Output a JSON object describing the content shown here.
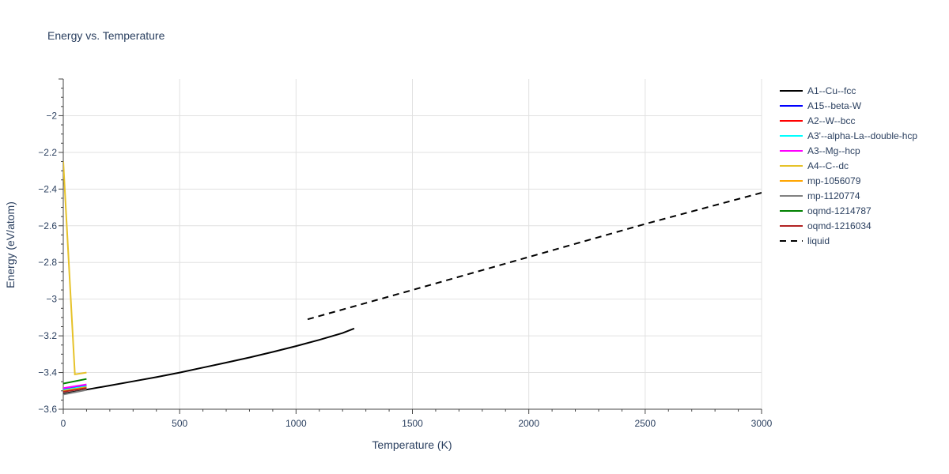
{
  "chart_data": {
    "type": "line",
    "title": "Energy vs. Temperature",
    "xlabel": "Temperature (K)",
    "ylabel": "Energy (eV/atom)",
    "xlim": [
      0,
      3000
    ],
    "ylim": [
      -3.6,
      -1.8
    ],
    "xticks": [
      0,
      500,
      1000,
      1500,
      2000,
      2500,
      3000
    ],
    "yticks": [
      -3.6,
      -3.4,
      -3.2,
      -3.0,
      -2.8,
      -2.6,
      -2.4,
      -2.2,
      -2.0
    ],
    "ytick_labels": [
      "−3.6",
      "−3.4",
      "−3.2",
      "−3",
      "−2.8",
      "−2.6",
      "−2.4",
      "−2.2",
      "−2"
    ],
    "grid": true,
    "legend_position": "right",
    "series": [
      {
        "name": "A1--Cu--fcc",
        "color": "#000000",
        "dash": "solid",
        "x": [
          0,
          100,
          200,
          300,
          400,
          500,
          600,
          700,
          800,
          900,
          1000,
          1100,
          1200,
          1250
        ],
        "y": [
          -3.515,
          -3.493,
          -3.471,
          -3.448,
          -3.425,
          -3.4,
          -3.373,
          -3.346,
          -3.318,
          -3.288,
          -3.256,
          -3.222,
          -3.185,
          -3.16
        ]
      },
      {
        "name": "A15--beta-W",
        "color": "#0000ff",
        "dash": "solid",
        "x": [
          0,
          100
        ],
        "y": [
          -3.49,
          -3.47
        ]
      },
      {
        "name": "A2--W--bcc",
        "color": "#ff0000",
        "dash": "solid",
        "x": [
          0,
          100
        ],
        "y": [
          -3.5,
          -3.48
        ]
      },
      {
        "name": "A3'--alpha-La--double-hcp",
        "color": "#00ffff",
        "dash": "solid",
        "x": [
          0,
          100
        ],
        "y": [
          -3.495,
          -3.475
        ]
      },
      {
        "name": "A3--Mg--hcp",
        "color": "#ff00ff",
        "dash": "solid",
        "x": [
          0,
          100
        ],
        "y": [
          -3.485,
          -3.465
        ]
      },
      {
        "name": "A4--C--dc",
        "color": "#e6c229",
        "dash": "solid",
        "x": [
          0,
          50,
          100
        ],
        "y": [
          -2.25,
          -3.41,
          -3.4
        ]
      },
      {
        "name": "mp-1056079",
        "color": "#ffa500",
        "dash": "solid",
        "x": [
          0,
          100
        ],
        "y": [
          -3.5,
          -3.48
        ]
      },
      {
        "name": "mp-1120774",
        "color": "#808080",
        "dash": "solid",
        "x": [
          0,
          100
        ],
        "y": [
          -3.52,
          -3.495
        ]
      },
      {
        "name": "oqmd-1214787",
        "color": "#008000",
        "dash": "solid",
        "x": [
          0,
          100
        ],
        "y": [
          -3.46,
          -3.435
        ]
      },
      {
        "name": "oqmd-1216034",
        "color": "#b22222",
        "dash": "solid",
        "x": [
          0,
          100
        ],
        "y": [
          -3.505,
          -3.485
        ]
      },
      {
        "name": "liquid",
        "color": "#000000",
        "dash": "dash",
        "x": [
          1050,
          1500,
          2000,
          2500,
          3000
        ],
        "y": [
          -3.11,
          -2.95,
          -2.77,
          -2.59,
          -2.42
        ]
      }
    ]
  }
}
